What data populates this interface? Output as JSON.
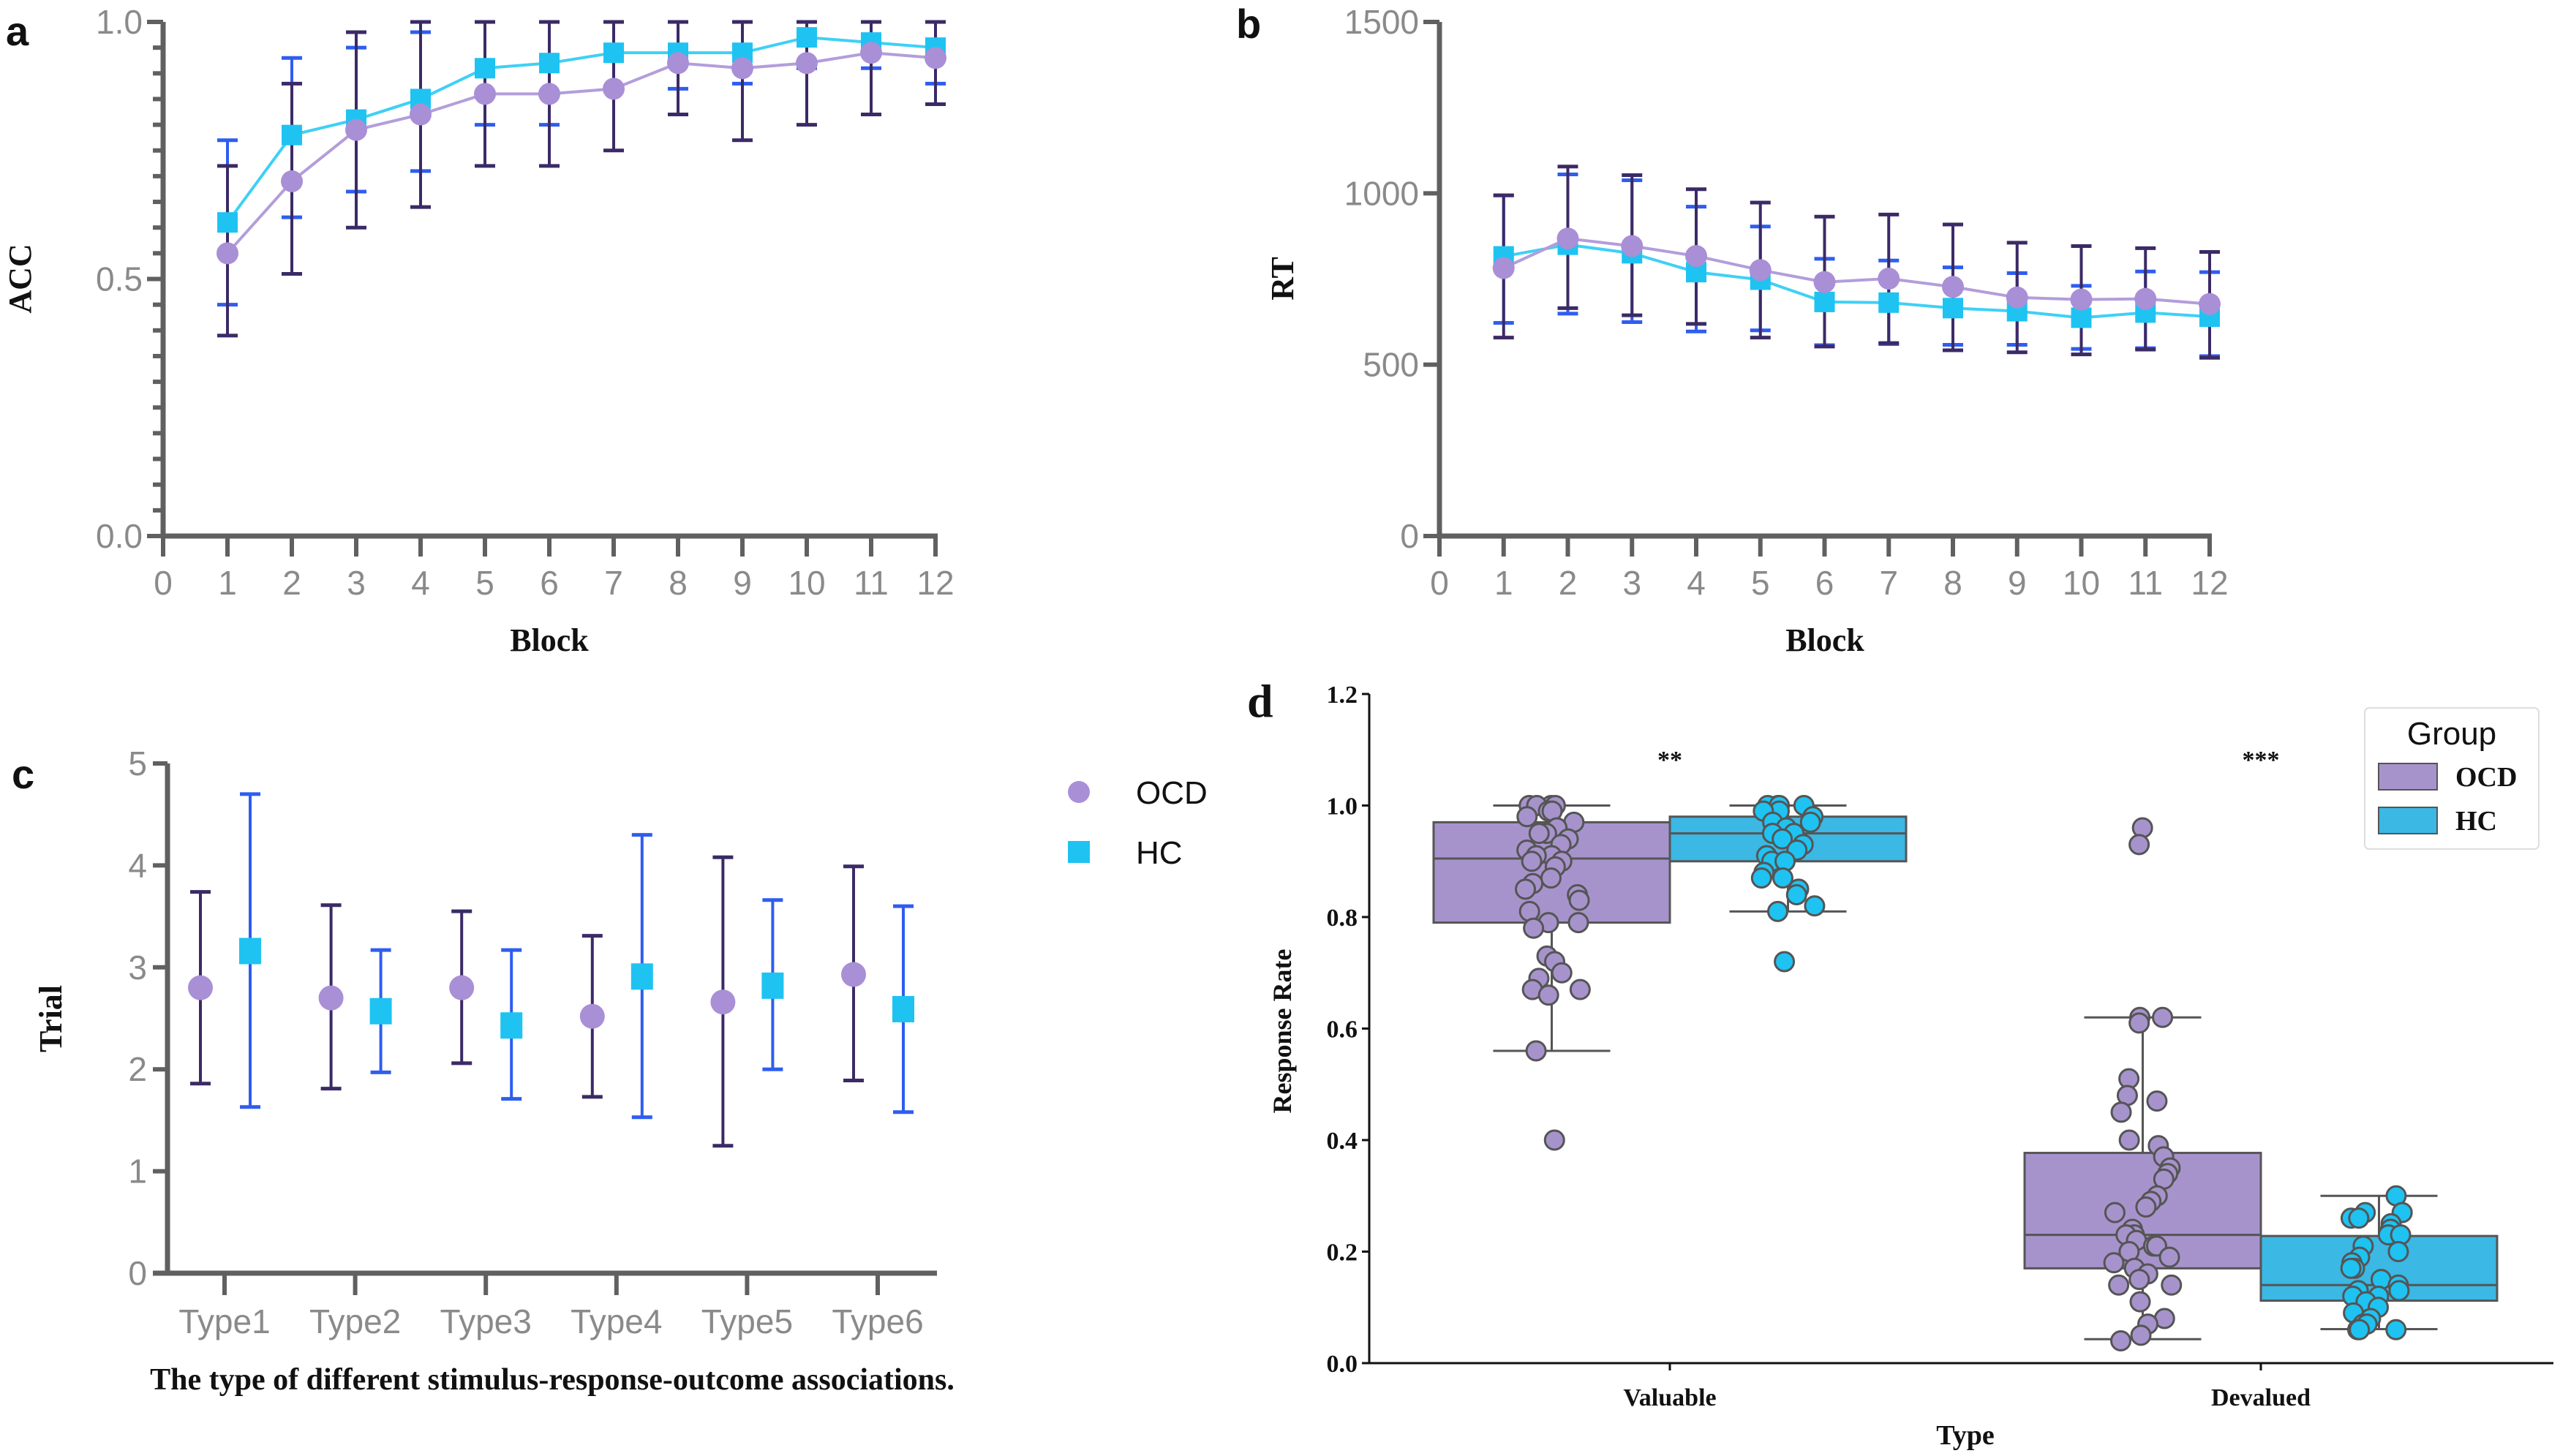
{
  "legend_abc": {
    "items": [
      {
        "label": "OCD",
        "marker": "circle"
      },
      {
        "label": "HC",
        "marker": "square"
      }
    ]
  },
  "colors": {
    "ocd_marker": "#a98fd6",
    "ocd_line": "#b39ddb",
    "ocd_error": "#3b2a66",
    "hc_marker": "#1ec3f2",
    "hc_line": "#3fd0f5",
    "hc_error": "#2f5df0",
    "box_ocd": "#a793cc",
    "box_hc": "#3bb8e4",
    "box_edge": "#555555"
  },
  "chart_data": [
    {
      "panel": "a",
      "type": "line",
      "xlabel": "Block",
      "ylabel": "ACC",
      "xlim": [
        0,
        12
      ],
      "ylim": [
        0,
        1.0
      ],
      "x_ticks": [
        "0",
        "1",
        "2",
        "3",
        "4",
        "5",
        "6",
        "7",
        "8",
        "9",
        "10",
        "11",
        "12"
      ],
      "y_ticks": [
        {
          "v": 0.0,
          "label": "0.0"
        },
        {
          "v": 0.5,
          "label": "0.5"
        },
        {
          "v": 1.0,
          "label": "1.0"
        }
      ],
      "y_minor_step": 0.05,
      "x": [
        1,
        2,
        3,
        4,
        5,
        6,
        7,
        8,
        9,
        10,
        11,
        12
      ],
      "series": [
        {
          "name": "OCD",
          "values": [
            0.55,
            0.69,
            0.79,
            0.82,
            0.86,
            0.86,
            0.87,
            0.92,
            0.91,
            0.92,
            0.94,
            0.93
          ],
          "err_low": [
            0.39,
            0.51,
            0.6,
            0.64,
            0.72,
            0.72,
            0.75,
            0.82,
            0.77,
            0.8,
            0.82,
            0.84
          ],
          "err_high": [
            0.72,
            0.88,
            0.98,
            1.0,
            1.0,
            1.0,
            1.0,
            1.0,
            1.0,
            1.0,
            1.0,
            1.0
          ]
        },
        {
          "name": "HC",
          "values": [
            0.61,
            0.78,
            0.81,
            0.85,
            0.91,
            0.92,
            0.94,
            0.94,
            0.94,
            0.97,
            0.96,
            0.95
          ],
          "err_low": [
            0.45,
            0.62,
            0.67,
            0.71,
            0.8,
            0.8,
            0.87,
            0.87,
            0.88,
            0.91,
            0.91,
            0.88
          ],
          "err_high": [
            0.77,
            0.93,
            0.95,
            0.98,
            1.0,
            1.0,
            1.0,
            1.0,
            1.0,
            1.0,
            1.0,
            1.0
          ]
        }
      ]
    },
    {
      "panel": "b",
      "type": "line",
      "xlabel": "Block",
      "ylabel": "RT",
      "xlim": [
        0,
        12
      ],
      "ylim": [
        0,
        1500
      ],
      "x_ticks": [
        "0",
        "1",
        "2",
        "3",
        "4",
        "5",
        "6",
        "7",
        "8",
        "9",
        "10",
        "11",
        "12"
      ],
      "y_ticks": [
        {
          "v": 0,
          "label": "0"
        },
        {
          "v": 500,
          "label": "500"
        },
        {
          "v": 1000,
          "label": "1000"
        },
        {
          "v": 1500,
          "label": "1500"
        }
      ],
      "x": [
        1,
        2,
        3,
        4,
        5,
        6,
        7,
        8,
        9,
        10,
        11,
        12
      ],
      "series": [
        {
          "name": "OCD",
          "values": [
            782,
            868,
            846,
            817,
            776,
            741,
            751,
            727,
            696,
            690,
            692,
            677
          ],
          "err_low": [
            579,
            665,
            644,
            619,
            579,
            553,
            563,
            542,
            536,
            530,
            544,
            520
          ],
          "err_high": [
            994,
            1078,
            1053,
            1012,
            973,
            932,
            938,
            909,
            856,
            846,
            840,
            829
          ]
        },
        {
          "name": "HC",
          "values": [
            816,
            850,
            825,
            770,
            748,
            683,
            681,
            665,
            656,
            637,
            652,
            640
          ],
          "err_low": [
            622,
            649,
            624,
            597,
            600,
            557,
            560,
            558,
            558,
            546,
            548,
            525
          ],
          "err_high": [
            994,
            1055,
            1038,
            961,
            903,
            809,
            804,
            784,
            767,
            730,
            772,
            770
          ]
        }
      ]
    },
    {
      "panel": "c",
      "type": "scatter",
      "xlabel": "The type of  different stimulus-response-outcome associations.",
      "ylabel": "Trial",
      "categories": [
        "Type1",
        "Type2",
        "Type3",
        "Type4",
        "Type5",
        "Type6"
      ],
      "ylim": [
        0,
        5
      ],
      "y_ticks": [
        {
          "v": 0,
          "label": "0"
        },
        {
          "v": 1,
          "label": "1"
        },
        {
          "v": 2,
          "label": "2"
        },
        {
          "v": 3,
          "label": "3"
        },
        {
          "v": 4,
          "label": "4"
        },
        {
          "v": 5,
          "label": "5"
        }
      ],
      "series": [
        {
          "name": "OCD",
          "values": [
            2.8,
            2.7,
            2.8,
            2.52,
            2.66,
            2.93
          ],
          "err_low": [
            1.86,
            1.81,
            2.06,
            1.73,
            1.25,
            1.89
          ],
          "err_high": [
            3.74,
            3.61,
            3.55,
            3.31,
            4.08,
            3.99
          ]
        },
        {
          "name": "HC",
          "values": [
            3.16,
            2.57,
            2.43,
            2.91,
            2.82,
            2.59
          ],
          "err_low": [
            1.63,
            1.97,
            1.71,
            1.53,
            2.0,
            1.58
          ],
          "err_high": [
            4.7,
            3.17,
            3.17,
            4.3,
            3.66,
            3.6
          ]
        }
      ]
    },
    {
      "panel": "d",
      "type": "box",
      "xlabel": "Type",
      "ylabel": "Response Rate",
      "categories": [
        "Valuable",
        "Devalued"
      ],
      "ylim": [
        0,
        1.2
      ],
      "y_ticks": [
        {
          "v": 0.0,
          "label": "0.0"
        },
        {
          "v": 0.2,
          "label": "0.2"
        },
        {
          "v": 0.4,
          "label": "0.4"
        },
        {
          "v": 0.6,
          "label": "0.6"
        },
        {
          "v": 0.8,
          "label": "0.8"
        },
        {
          "v": 1.0,
          "label": "1.0"
        },
        {
          "v": 1.2,
          "label": "1.2"
        }
      ],
      "legend": {
        "title": "Group",
        "placement": "top-right",
        "items": [
          "OCD",
          "HC"
        ]
      },
      "significance": [
        {
          "category": "Valuable",
          "label": "**"
        },
        {
          "category": "Devalued",
          "label": "***"
        }
      ],
      "boxes": [
        {
          "category": "Valuable",
          "group": "OCD",
          "q1": 0.79,
          "median": 0.905,
          "q3": 0.97,
          "whisker_low": 0.56,
          "whisker_high": 1.0,
          "points": [
            1.0,
            1.0,
            1.0,
            1.0,
            0.99,
            0.99,
            0.98,
            0.97,
            0.96,
            0.95,
            0.95,
            0.94,
            0.93,
            0.92,
            0.91,
            0.91,
            0.9,
            0.9,
            0.89,
            0.87,
            0.86,
            0.85,
            0.84,
            0.83,
            0.81,
            0.79,
            0.79,
            0.78,
            0.73,
            0.72,
            0.7,
            0.69,
            0.67,
            0.67,
            0.66,
            0.56,
            0.4
          ]
        },
        {
          "category": "Valuable",
          "group": "HC",
          "q1": 0.9,
          "median": 0.95,
          "q3": 0.98,
          "whisker_low": 0.81,
          "whisker_high": 1.0,
          "points": [
            1.0,
            1.0,
            1.0,
            1.0,
            0.99,
            0.99,
            0.98,
            0.97,
            0.97,
            0.96,
            0.95,
            0.95,
            0.94,
            0.93,
            0.92,
            0.91,
            0.9,
            0.9,
            0.88,
            0.87,
            0.87,
            0.85,
            0.84,
            0.82,
            0.81,
            0.72
          ]
        },
        {
          "category": "Devalued",
          "group": "OCD",
          "q1": 0.17,
          "median": 0.23,
          "q3": 0.377,
          "whisker_low": 0.043,
          "whisker_high": 0.62,
          "points": [
            0.96,
            0.93,
            0.62,
            0.62,
            0.61,
            0.51,
            0.48,
            0.47,
            0.45,
            0.4,
            0.39,
            0.37,
            0.35,
            0.34,
            0.33,
            0.3,
            0.29,
            0.28,
            0.27,
            0.24,
            0.23,
            0.23,
            0.22,
            0.21,
            0.21,
            0.2,
            0.19,
            0.18,
            0.17,
            0.16,
            0.15,
            0.14,
            0.14,
            0.11,
            0.08,
            0.07,
            0.05,
            0.04
          ]
        },
        {
          "category": "Devalued",
          "group": "HC",
          "q1": 0.112,
          "median": 0.14,
          "q3": 0.228,
          "whisker_low": 0.061,
          "whisker_high": 0.3,
          "points": [
            0.3,
            0.27,
            0.27,
            0.26,
            0.26,
            0.25,
            0.24,
            0.23,
            0.23,
            0.21,
            0.2,
            0.19,
            0.18,
            0.17,
            0.17,
            0.15,
            0.14,
            0.13,
            0.13,
            0.12,
            0.12,
            0.11,
            0.1,
            0.09,
            0.08,
            0.07,
            0.07,
            0.06,
            0.06,
            0.06
          ]
        }
      ]
    }
  ],
  "panel_labels": {
    "a": "a",
    "b": "b",
    "c": "c",
    "d": "d"
  }
}
